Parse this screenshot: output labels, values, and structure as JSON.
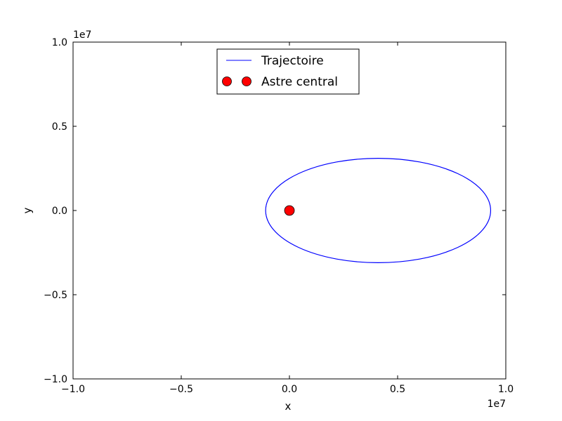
{
  "chart_data": {
    "type": "line",
    "title": "",
    "xlabel": "x",
    "ylabel": "y",
    "x_offset_label": "1e7",
    "y_offset_label": "1e7",
    "xlim": [
      -1.0,
      1.0
    ],
    "ylim": [
      -1.0,
      1.0
    ],
    "x_ticks": [
      -1.0,
      -0.5,
      0.0,
      0.5,
      1.0
    ],
    "y_ticks": [
      -1.0,
      -0.5,
      0.0,
      0.5,
      1.0
    ],
    "x_tick_labels": [
      "−1.0",
      "−0.5",
      "0.0",
      "0.5",
      "1.0"
    ],
    "y_tick_labels": [
      "−1.0",
      "−0.5",
      "0.0",
      "0.5",
      "1.0"
    ],
    "grid": false,
    "legend_position": "upper center",
    "series": [
      {
        "name": "Trajectoire",
        "kind": "line",
        "color": "#0000ff",
        "shape": "ellipse",
        "x_min": -0.11,
        "x_max": 0.93,
        "y_min": -0.31,
        "y_max": 0.31
      },
      {
        "name": "Astre central",
        "kind": "marker",
        "color": "#ff0000",
        "points": [
          [
            0.0,
            0.0
          ]
        ]
      }
    ]
  }
}
